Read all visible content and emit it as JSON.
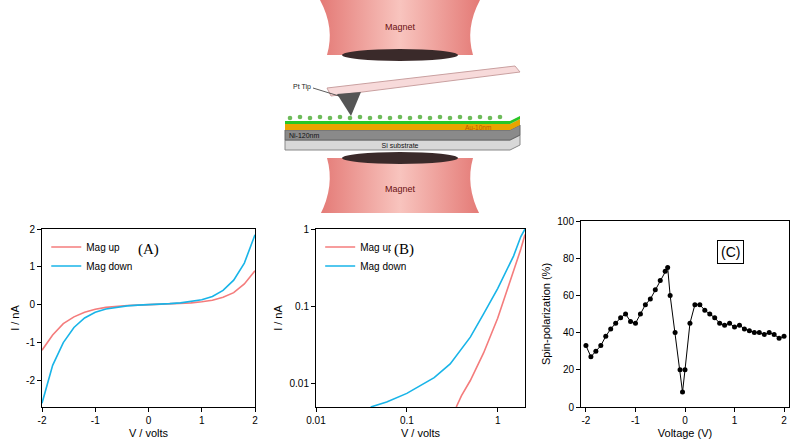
{
  "diagram": {
    "magnet_top": "Magnet",
    "magnet_bottom": "Magnet",
    "tip": "Pt Tip",
    "ni_layer": "Ni-120nm",
    "au_layer": "Au-10nm",
    "substrate": "Si substrate"
  },
  "chart_data": [
    {
      "type": "line",
      "annotations": [
        "(A)"
      ],
      "xlabel": "V / volts",
      "ylabel": "I / nA",
      "x": [
        -2,
        -1.8,
        -1.6,
        -1.4,
        -1.2,
        -1,
        -0.8,
        -0.6,
        -0.4,
        -0.2,
        0,
        0.2,
        0.4,
        0.6,
        0.8,
        1,
        1.2,
        1.4,
        1.6,
        1.8,
        2
      ],
      "series": [
        {
          "name": "Mag up",
          "color": "#f47c7c",
          "values": [
            -1.2,
            -0.8,
            -0.5,
            -0.32,
            -0.2,
            -0.12,
            -0.07,
            -0.04,
            -0.02,
            -0.01,
            0,
            0.01,
            0.02,
            0.03,
            0.05,
            0.08,
            0.12,
            0.2,
            0.32,
            0.55,
            0.9
          ]
        },
        {
          "name": "Mag down",
          "color": "#18b4e8",
          "values": [
            -2.6,
            -1.6,
            -1.0,
            -0.6,
            -0.35,
            -0.2,
            -0.11,
            -0.06,
            -0.03,
            -0.01,
            0,
            0.01,
            0.03,
            0.05,
            0.08,
            0.13,
            0.22,
            0.38,
            0.65,
            1.1,
            1.85
          ]
        }
      ],
      "xlim": [
        -2,
        2
      ],
      "xticks": [
        -2,
        -1,
        0,
        1,
        2
      ],
      "ylim": [
        -2.7,
        2
      ],
      "yticks": [
        -2,
        -1,
        0,
        1,
        2
      ],
      "grid": false,
      "legend": "upper left"
    },
    {
      "type": "line",
      "annotations": [
        "(B)"
      ],
      "xlabel": "V / volts",
      "ylabel": "I / nA",
      "log": true,
      "series": [
        {
          "name": "Mag up",
          "color": "#f47c7c",
          "x": [
            0.35,
            0.4,
            0.5,
            0.7,
            1,
            1.5,
            1.8,
            2
          ],
          "values": [
            0.005,
            0.007,
            0.011,
            0.025,
            0.07,
            0.28,
            0.55,
            0.85
          ]
        },
        {
          "name": "Mag down",
          "color": "#18b4e8",
          "x": [
            0.04,
            0.06,
            0.1,
            0.2,
            0.3,
            0.5,
            0.7,
            1,
            1.5,
            1.8,
            2
          ],
          "values": [
            0.005,
            0.0058,
            0.0075,
            0.012,
            0.018,
            0.04,
            0.08,
            0.17,
            0.45,
            0.8,
            1.0
          ]
        }
      ],
      "xlim": [
        0.01,
        2
      ],
      "xticks": [
        0.01,
        0.1,
        1
      ],
      "ylim": [
        0.005,
        1
      ],
      "yticks": [
        0.01,
        0.1,
        1
      ],
      "grid": false,
      "legend": "upper left"
    },
    {
      "type": "line",
      "annotations": [
        "(C)"
      ],
      "xlabel": "Voltage (V)",
      "ylabel": "Spin-polarization (%)",
      "x": [
        -2,
        -1.9,
        -1.8,
        -1.7,
        -1.6,
        -1.5,
        -1.4,
        -1.3,
        -1.2,
        -1.1,
        -1,
        -0.9,
        -0.8,
        -0.7,
        -0.6,
        -0.5,
        -0.4,
        -0.35,
        -0.3,
        -0.2,
        -0.1,
        -0.05,
        0,
        0.1,
        0.2,
        0.3,
        0.4,
        0.5,
        0.6,
        0.7,
        0.8,
        0.9,
        1,
        1.1,
        1.2,
        1.3,
        1.4,
        1.5,
        1.6,
        1.7,
        1.8,
        1.9,
        2
      ],
      "values": [
        33,
        27,
        30,
        33,
        38,
        42,
        45,
        48,
        50,
        46,
        45,
        50,
        55,
        58,
        63,
        68,
        73,
        75,
        60,
        40,
        20,
        8,
        20,
        45,
        55,
        55,
        52,
        50,
        48,
        45,
        44,
        45,
        43,
        44,
        42,
        41,
        40,
        40,
        39,
        40,
        39,
        37,
        38
      ],
      "color": "#000000",
      "marker": "circle",
      "xlim": [
        -2.1,
        2.1
      ],
      "xticks": [
        -2,
        -1,
        0,
        1,
        2
      ],
      "ylim": [
        0,
        100
      ],
      "yticks": [
        0,
        20,
        40,
        60,
        80,
        100
      ],
      "grid": false
    }
  ]
}
